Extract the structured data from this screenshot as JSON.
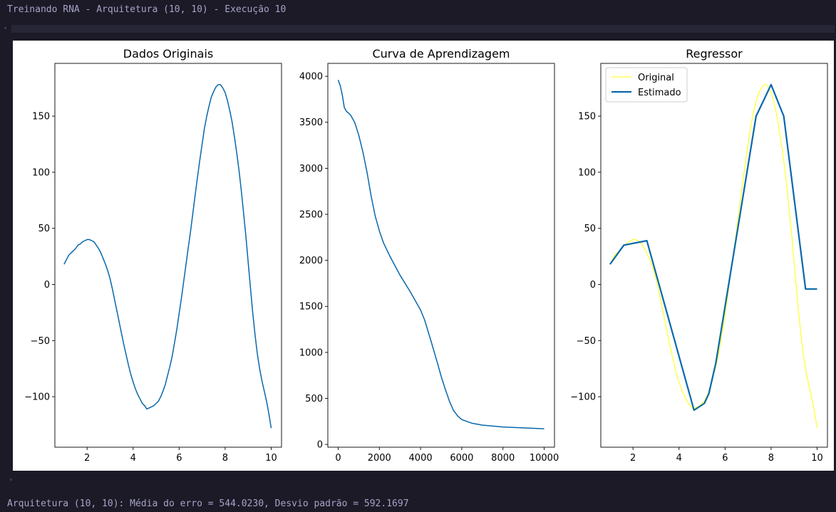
{
  "console": {
    "top": "Treinando RNA - Arquitetura (10, 10) - Execução 10",
    "bottom": "Arquitetura (10, 10): Média do erro = 544.0230, Desvio padrão = 592.1697"
  },
  "colors": {
    "line": "#0868ac",
    "original": "#ffff00",
    "estimated": "#0868ac"
  },
  "chart_data": [
    {
      "type": "line",
      "title": "Dados Originais",
      "xlabel": "",
      "ylabel": "",
      "xlim": [
        0.6,
        10.45
      ],
      "ylim": [
        -145,
        197
      ],
      "xticks": [
        2,
        4,
        6,
        8,
        10
      ],
      "yticks": [
        -100,
        -50,
        0,
        50,
        100,
        150
      ],
      "ytick_labels": [
        "−100",
        "−50",
        "0",
        "50",
        "100",
        "150"
      ],
      "series": [
        {
          "x": [
            1.0,
            1.1,
            1.2,
            1.3,
            1.4,
            1.5,
            1.6,
            1.7,
            1.8,
            1.9,
            2.0,
            2.1,
            2.2,
            2.3,
            2.4,
            2.5,
            2.6,
            2.7,
            2.8,
            2.9,
            3.0,
            3.1,
            3.2,
            3.3,
            3.4,
            3.5,
            3.6,
            3.7,
            3.8,
            3.9,
            4.0,
            4.1,
            4.2,
            4.3,
            4.4,
            4.5,
            4.6,
            4.7,
            4.8,
            4.9,
            5.0,
            5.1,
            5.2,
            5.3,
            5.4,
            5.5,
            5.6,
            5.7,
            5.8,
            5.9,
            6.0,
            6.1,
            6.2,
            6.3,
            6.4,
            6.5,
            6.6,
            6.7,
            6.8,
            6.9,
            7.0,
            7.1,
            7.2,
            7.3,
            7.4,
            7.5,
            7.6,
            7.7,
            7.8,
            7.9,
            8.0,
            8.1,
            8.2,
            8.3,
            8.4,
            8.5,
            8.6,
            8.7,
            8.8,
            8.9,
            9.0,
            9.1,
            9.2,
            9.3,
            9.4,
            9.5,
            9.6,
            9.7,
            9.8,
            9.9,
            10.0
          ],
          "y": [
            18,
            22,
            26,
            28,
            30,
            32,
            35,
            36,
            38,
            39,
            40,
            40,
            39,
            38,
            35,
            32,
            28,
            23,
            18,
            12,
            5,
            -4,
            -14,
            -24,
            -34,
            -44,
            -54,
            -63,
            -72,
            -80,
            -87,
            -93,
            -98,
            -102,
            -106,
            -108,
            -111,
            -110,
            -109,
            -108,
            -106,
            -104,
            -100,
            -95,
            -89,
            -81,
            -73,
            -64,
            -52,
            -40,
            -26,
            -12,
            3,
            18,
            33,
            48,
            64,
            80,
            96,
            111,
            125,
            139,
            150,
            159,
            167,
            172,
            176,
            178,
            178,
            175,
            171,
            164,
            155,
            145,
            132,
            118,
            102,
            84,
            64,
            43,
            20,
            -3,
            -25,
            -45,
            -62,
            -75,
            -86,
            -95,
            -104,
            -115,
            -128
          ]
        }
      ]
    },
    {
      "type": "line",
      "title": "Curva de Aprendizagem",
      "xlabel": "",
      "ylabel": "",
      "xlim": [
        -500,
        10500
      ],
      "ylim": [
        -30,
        4140
      ],
      "xticks": [
        0,
        2000,
        4000,
        6000,
        8000,
        10000
      ],
      "yticks": [
        0,
        500,
        1000,
        1500,
        2000,
        2500,
        3000,
        3500,
        4000
      ],
      "ytick_labels": [
        "0",
        "500",
        "1000",
        "1500",
        "2000",
        "2500",
        "3000",
        "3500",
        "4000"
      ],
      "series": [
        {
          "x": [
            0,
            100,
            200,
            300,
            400,
            600,
            800,
            1000,
            1200,
            1400,
            1600,
            1800,
            2000,
            2200,
            2500,
            3000,
            3500,
            4000,
            4200,
            4500,
            4800,
            5000,
            5200,
            5400,
            5600,
            5800,
            6000,
            6500,
            7000,
            8000,
            9000,
            10000
          ],
          "y": [
            3960,
            3900,
            3800,
            3660,
            3620,
            3580,
            3500,
            3360,
            3180,
            2960,
            2700,
            2480,
            2320,
            2190,
            2050,
            1840,
            1660,
            1460,
            1350,
            1130,
            900,
            740,
            600,
            470,
            370,
            310,
            270,
            230,
            210,
            190,
            180,
            170
          ]
        }
      ]
    },
    {
      "type": "line",
      "title": "Regressor",
      "xlabel": "",
      "ylabel": "",
      "xlim": [
        0.6,
        10.45
      ],
      "ylim": [
        -145,
        197
      ],
      "xticks": [
        2,
        4,
        6,
        8,
        10
      ],
      "yticks": [
        -100,
        -50,
        0,
        50,
        100,
        150
      ],
      "ytick_labels": [
        "−100",
        "−50",
        "0",
        "50",
        "100",
        "150"
      ],
      "legend": "top-left",
      "series": [
        {
          "name": "Original",
          "x": [
            1.0,
            1.1,
            1.2,
            1.3,
            1.4,
            1.5,
            1.6,
            1.7,
            1.8,
            1.9,
            2.0,
            2.1,
            2.2,
            2.3,
            2.4,
            2.5,
            2.6,
            2.7,
            2.8,
            2.9,
            3.0,
            3.1,
            3.2,
            3.3,
            3.4,
            3.5,
            3.6,
            3.7,
            3.8,
            3.9,
            4.0,
            4.1,
            4.2,
            4.3,
            4.4,
            4.5,
            4.6,
            4.7,
            4.8,
            4.9,
            5.0,
            5.1,
            5.2,
            5.3,
            5.4,
            5.5,
            5.6,
            5.7,
            5.8,
            5.9,
            6.0,
            6.1,
            6.2,
            6.3,
            6.4,
            6.5,
            6.6,
            6.7,
            6.8,
            6.9,
            7.0,
            7.1,
            7.2,
            7.3,
            7.4,
            7.5,
            7.6,
            7.7,
            7.8,
            7.9,
            8.0,
            8.1,
            8.2,
            8.3,
            8.4,
            8.5,
            8.6,
            8.7,
            8.8,
            8.9,
            9.0,
            9.1,
            9.2,
            9.3,
            9.4,
            9.5,
            9.6,
            9.7,
            9.8,
            9.9,
            10.0
          ],
          "y": [
            18,
            22,
            26,
            28,
            30,
            32,
            35,
            36,
            38,
            39,
            40,
            40,
            39,
            38,
            35,
            32,
            28,
            23,
            18,
            12,
            5,
            -4,
            -14,
            -24,
            -34,
            -44,
            -54,
            -63,
            -72,
            -80,
            -87,
            -93,
            -98,
            -102,
            -106,
            -108,
            -111,
            -110,
            -109,
            -108,
            -106,
            -104,
            -100,
            -95,
            -89,
            -81,
            -73,
            -64,
            -52,
            -40,
            -26,
            -12,
            3,
            18,
            33,
            48,
            64,
            80,
            96,
            111,
            125,
            139,
            150,
            159,
            167,
            172,
            176,
            178,
            178,
            175,
            171,
            164,
            155,
            145,
            132,
            118,
            102,
            84,
            64,
            43,
            20,
            -3,
            -25,
            -45,
            -62,
            -75,
            -86,
            -95,
            -104,
            -115,
            -128
          ]
        },
        {
          "name": "Estimado",
          "x": [
            1.0,
            1.6,
            2.6,
            4.65,
            5.1,
            5.3,
            5.6,
            7.35,
            7.7,
            8.0,
            8.55,
            9.5,
            10.0
          ],
          "y": [
            18,
            35,
            39,
            -112,
            -106,
            -97,
            -70,
            150,
            165,
            178,
            150,
            -4,
            -4
          ]
        }
      ]
    }
  ]
}
